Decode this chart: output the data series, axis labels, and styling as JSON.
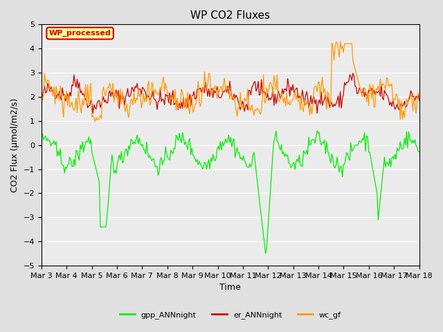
{
  "title": "WP CO2 Fluxes",
  "xlabel": "Time",
  "ylabel": "CO2 Flux (μmol/m2/s)",
  "ylim": [
    -5.0,
    5.0
  ],
  "yticks": [
    -5.0,
    -4.0,
    -3.0,
    -2.0,
    -1.0,
    0.0,
    1.0,
    2.0,
    3.0,
    4.0,
    5.0
  ],
  "xtick_labels": [
    "Mar 3",
    "Mar 4",
    "Mar 5",
    "Mar 6",
    "Mar 7",
    "Mar 8",
    "Mar 9",
    "Mar 10",
    "Mar 11",
    "Mar 12",
    "Mar 13",
    "Mar 14",
    "Mar 15",
    "Mar 16",
    "Mar 17",
    "Mar 18"
  ],
  "n_days": 15,
  "points_per_day": 24,
  "gpp_color": "#00ee00",
  "er_color": "#cc0000",
  "wc_color": "#ff9900",
  "background_color": "#e0e0e0",
  "plot_bg_color": "#ebebeb",
  "legend_label": "WP_processed",
  "legend_facecolor": "#ffff99",
  "legend_edgecolor": "#cc0000",
  "legend_textcolor": "#cc0000",
  "title_fontsize": 11,
  "axis_fontsize": 9,
  "tick_fontsize": 8,
  "legend_fontsize": 8,
  "linewidth_gpp": 0.9,
  "linewidth_er": 0.9,
  "linewidth_wc": 0.9
}
